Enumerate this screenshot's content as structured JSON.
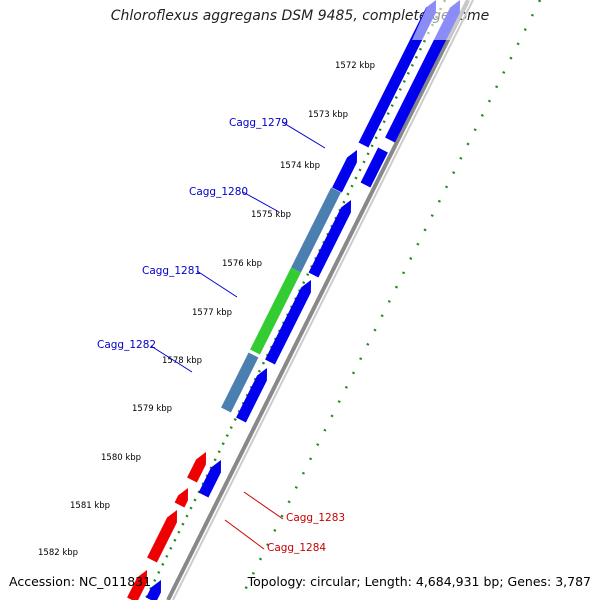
{
  "title": "Chloroflexus aggregans DSM 9485, complete genome",
  "accession_label": "Accession: NC_011831",
  "summary_label": "Topology: circular; Length: 4,684,931 bp; Genes: 3,787",
  "ticks": [
    "1572 kbp",
    "1573 kbp",
    "1574 kbp",
    "1575 kbp",
    "1576 kbp",
    "1577 kbp",
    "1578 kbp",
    "1579 kbp",
    "1580 kbp",
    "1581 kbp",
    "1582 kbp"
  ],
  "genes": [
    {
      "name": "Cagg_1279",
      "color": "#0000cc"
    },
    {
      "name": "Cagg_1280",
      "color": "#0000cc"
    },
    {
      "name": "Cagg_1281",
      "color": "#0000cc"
    },
    {
      "name": "Cagg_1282",
      "color": "#0000cc"
    },
    {
      "name": "Cagg_1283",
      "color": "#cc0000"
    },
    {
      "name": "Cagg_1284",
      "color": "#cc0000"
    }
  ],
  "colors": {
    "forward_gene": "#0000ee",
    "reverse_gene": "#ee0000",
    "operon_steelblue": "#4a7fb0",
    "operon_green": "#33cc33",
    "tick_dots": "#228b22",
    "backbone": "#888888"
  }
}
